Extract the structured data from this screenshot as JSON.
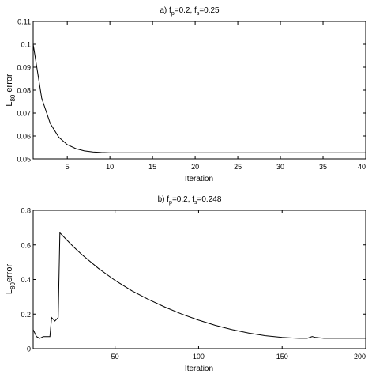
{
  "chart_data": [
    {
      "type": "line",
      "title": {
        "prefix": "a)  f",
        "sub1": "p",
        "mid": "=0.2, f",
        "sub2": "s",
        "suffix": "=0.25"
      },
      "xlabel": "Iteration",
      "ylabel": {
        "main": "L",
        "sub": "80",
        "rest": " error"
      },
      "xlim": [
        1,
        40
      ],
      "ylim": [
        0.05,
        0.11
      ],
      "xticks": [
        5,
        10,
        15,
        20,
        25,
        30,
        35,
        40
      ],
      "yticks": [
        0.05,
        0.06,
        0.07,
        0.08,
        0.09,
        0.1,
        0.11
      ],
      "grid": false,
      "series": [
        {
          "x": [
            1,
            2,
            3,
            4,
            5,
            6,
            7,
            8,
            9,
            10,
            12,
            15,
            20,
            25,
            30,
            35,
            40
          ],
          "y": [
            0.1,
            0.0765,
            0.0655,
            0.0595,
            0.0562,
            0.0545,
            0.0535,
            0.053,
            0.0528,
            0.0527,
            0.0527,
            0.0527,
            0.0527,
            0.0527,
            0.0527,
            0.0527,
            0.0527
          ]
        }
      ]
    },
    {
      "type": "line",
      "title": {
        "prefix": "b)  f",
        "sub1": "p",
        "mid": "=0.2, f",
        "sub2": "s",
        "suffix": "=0.248"
      },
      "xlabel": "Iteration",
      "ylabel": {
        "main": "L",
        "sub": "80",
        "rest": "error"
      },
      "xlim": [
        1,
        200
      ],
      "ylim": [
        0,
        0.8
      ],
      "xticks": [
        50,
        100,
        150,
        200
      ],
      "yticks": [
        0,
        0.2,
        0.4,
        0.6,
        0.8
      ],
      "grid": false,
      "series": [
        {
          "x": [
            1,
            2,
            3,
            5,
            7,
            9,
            11,
            12,
            13,
            14,
            15,
            16,
            17,
            18,
            20,
            25,
            30,
            40,
            50,
            60,
            70,
            80,
            90,
            100,
            110,
            120,
            130,
            140,
            150,
            155,
            160,
            165,
            168,
            170,
            175,
            180,
            190,
            200
          ],
          "y": [
            0.11,
            0.09,
            0.07,
            0.06,
            0.07,
            0.07,
            0.07,
            0.18,
            0.17,
            0.16,
            0.17,
            0.18,
            0.67,
            0.66,
            0.64,
            0.59,
            0.545,
            0.465,
            0.395,
            0.335,
            0.285,
            0.24,
            0.2,
            0.165,
            0.135,
            0.11,
            0.09,
            0.075,
            0.065,
            0.062,
            0.06,
            0.06,
            0.07,
            0.065,
            0.06,
            0.06,
            0.06,
            0.06
          ]
        }
      ]
    }
  ]
}
